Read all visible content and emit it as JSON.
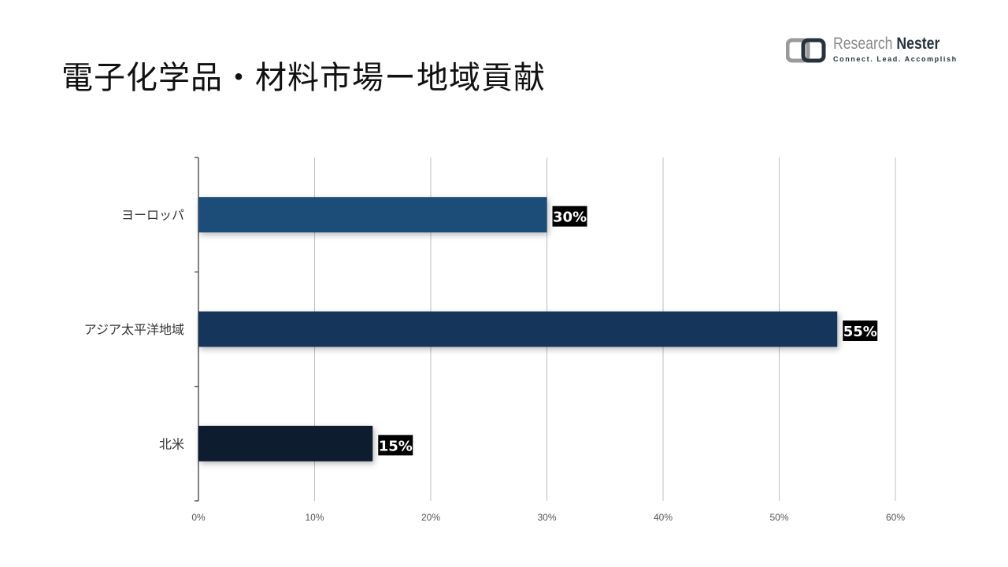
{
  "title": "電子化学品・材料市場ー地域貢献",
  "logo": {
    "name_light": "Research",
    "name_bold": "Nester",
    "tagline": "Connect. Lead. Accomplish"
  },
  "colors": {
    "europe": "#1f4e79",
    "asia_pacific": "#18365a",
    "north_america": "#0f1e2d",
    "grid": "#bfbfbf",
    "axis": "#595959",
    "label_bg": "#000000"
  },
  "chart_data": {
    "type": "bar",
    "orientation": "horizontal",
    "categories": [
      "ヨーロッパ",
      "アジア太平洋地域",
      "北米"
    ],
    "values": [
      30,
      55,
      15
    ],
    "data_labels": [
      "30%",
      "55%",
      "15%"
    ],
    "xlim": [
      0,
      60
    ],
    "xticks": [
      0,
      10,
      20,
      30,
      40,
      50,
      60
    ],
    "xtick_labels": [
      "0%",
      "10%",
      "20%",
      "30%",
      "40%",
      "50%",
      "60%"
    ],
    "grid": true,
    "legend": "none"
  }
}
